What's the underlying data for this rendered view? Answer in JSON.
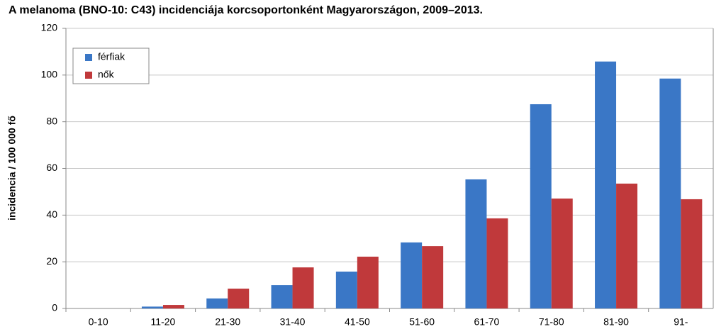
{
  "chart_data": {
    "type": "bar",
    "title": "A melanoma (BNO-10: C43) incidenciája korcsoportonként Magyarországon, 2009–2013.",
    "y_label": "incidencia / 100 000 fő",
    "categories": [
      "0-10",
      "11-20",
      "21-30",
      "31-40",
      "41-50",
      "51-60",
      "61-70",
      "71-80",
      "81-90",
      "91-"
    ],
    "series": [
      {
        "name": "férfiak",
        "color": "#3a77c6",
        "values": [
          0,
          0.8,
          4.3,
          10.0,
          15.8,
          28.3,
          55.3,
          87.5,
          105.8,
          98.5
        ]
      },
      {
        "name": "nők",
        "color": "#c0393b",
        "values": [
          0,
          1.5,
          8.5,
          17.6,
          22.2,
          26.7,
          38.6,
          47.1,
          53.5,
          46.8
        ]
      }
    ],
    "ylim": [
      0,
      120
    ],
    "yticks": [
      0,
      20,
      40,
      60,
      80,
      100,
      120
    ],
    "grid": true,
    "legend": "top-left"
  }
}
